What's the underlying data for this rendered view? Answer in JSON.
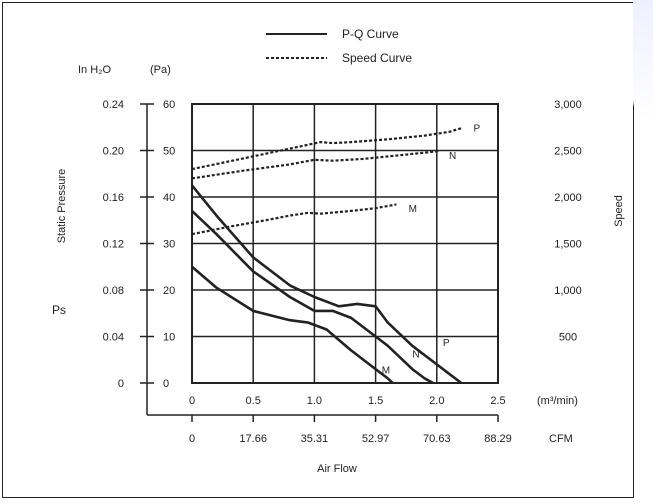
{
  "chart_data": {
    "type": "line",
    "legend": {
      "placement": "top-center",
      "entries": [
        {
          "label": "P-Q Curve",
          "style": "solid"
        },
        {
          "label": "Speed Curve",
          "style": "dashed"
        }
      ]
    },
    "left_axis": {
      "unit_inh2o": "In H₂O",
      "unit_pa": "(Pa)",
      "label": "Static Pressure",
      "symbol": "Ps",
      "ticks_inh2o": [
        "0",
        "0.04",
        "0.08",
        "0.12",
        "0.16",
        "0.20",
        "0.24"
      ],
      "ticks_pa": [
        "0",
        "10",
        "20",
        "30",
        "40",
        "50",
        "60"
      ],
      "ylim": [
        0,
        60
      ]
    },
    "right_axis": {
      "label": "Speed",
      "ticks": [
        "500",
        "1,000",
        "1,500",
        "2,000",
        "2,500",
        "3,000"
      ],
      "ylim": [
        0,
        3000
      ]
    },
    "x_axis": {
      "ticks_m3": [
        "0",
        "0.5",
        "1.0",
        "1.5",
        "2.0",
        "2.5"
      ],
      "unit_m3": "(m³/min)",
      "ticks_cfm": [
        "0",
        "17.66",
        "35.31",
        "52.97",
        "70.63",
        "88.29"
      ],
      "unit_cfm": "CFM",
      "label": "Air Flow",
      "xlim": [
        0,
        2.5
      ]
    },
    "grid": true,
    "pq_series": [
      {
        "name": "P",
        "points": [
          [
            0,
            42.5
          ],
          [
            0.2,
            36
          ],
          [
            0.5,
            27
          ],
          [
            0.8,
            21
          ],
          [
            1.0,
            18.5
          ],
          [
            1.2,
            16.5
          ],
          [
            1.35,
            17
          ],
          [
            1.5,
            16.5
          ],
          [
            1.6,
            13
          ],
          [
            1.8,
            8
          ],
          [
            2.0,
            4
          ],
          [
            2.1,
            2
          ],
          [
            2.2,
            0
          ]
        ],
        "label_at": [
          2.05,
          8
        ]
      },
      {
        "name": "N",
        "points": [
          [
            0,
            37
          ],
          [
            0.2,
            32
          ],
          [
            0.5,
            24
          ],
          [
            0.8,
            18.5
          ],
          [
            1.0,
            15.5
          ],
          [
            1.15,
            15.5
          ],
          [
            1.3,
            14
          ],
          [
            1.45,
            11
          ],
          [
            1.6,
            8
          ],
          [
            1.8,
            3
          ],
          [
            1.9,
            1
          ],
          [
            1.97,
            0
          ]
        ],
        "label_at": [
          1.8,
          5.5
        ]
      },
      {
        "name": "M",
        "points": [
          [
            0,
            25
          ],
          [
            0.2,
            20.5
          ],
          [
            0.5,
            15.5
          ],
          [
            0.8,
            13.5
          ],
          [
            0.95,
            13
          ],
          [
            1.1,
            11.5
          ],
          [
            1.3,
            7
          ],
          [
            1.5,
            3
          ],
          [
            1.6,
            1
          ],
          [
            1.64,
            0
          ]
        ],
        "label_at": [
          1.55,
          2
        ]
      }
    ],
    "speed_series": [
      {
        "name": "P",
        "points": [
          [
            0,
            2300
          ],
          [
            0.4,
            2410
          ],
          [
            0.8,
            2520
          ],
          [
            1.05,
            2590
          ],
          [
            1.15,
            2580
          ],
          [
            1.3,
            2590
          ],
          [
            1.6,
            2620
          ],
          [
            1.9,
            2660
          ],
          [
            2.1,
            2700
          ],
          [
            2.2,
            2740
          ]
        ],
        "label_at": [
          2.3,
          2750
        ]
      },
      {
        "name": "N",
        "points": [
          [
            0,
            2200
          ],
          [
            0.4,
            2280
          ],
          [
            0.8,
            2350
          ],
          [
            1.0,
            2400
          ],
          [
            1.15,
            2390
          ],
          [
            1.4,
            2410
          ],
          [
            1.7,
            2450
          ],
          [
            2.0,
            2490
          ],
          [
            2.02,
            2510
          ]
        ],
        "label_at": [
          2.1,
          2450
        ]
      },
      {
        "name": "M",
        "points": [
          [
            0,
            1600
          ],
          [
            0.3,
            1680
          ],
          [
            0.6,
            1750
          ],
          [
            0.8,
            1800
          ],
          [
            0.95,
            1830
          ],
          [
            1.05,
            1820
          ],
          [
            1.3,
            1850
          ],
          [
            1.5,
            1880
          ],
          [
            1.67,
            1920
          ]
        ],
        "label_at": [
          1.77,
          1880
        ]
      }
    ]
  }
}
